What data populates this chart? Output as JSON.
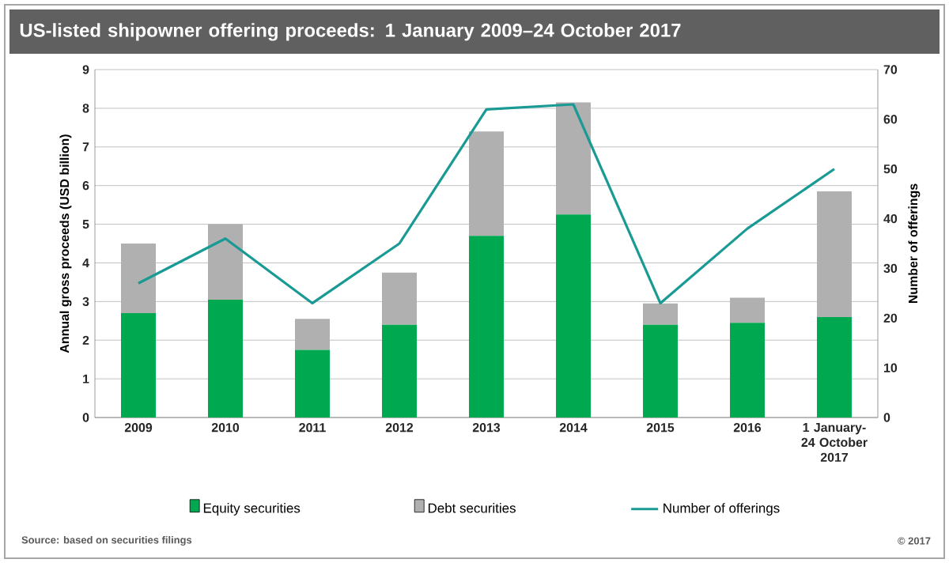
{
  "chart_data": {
    "type": "bar",
    "title": "US-listed shipowner offering proceeds: 1 January 2009–24 October 2017",
    "categories": [
      "2009",
      "2010",
      "2011",
      "2012",
      "2013",
      "2014",
      "2015",
      "2016",
      "1 January- 24 October 2017"
    ],
    "series": [
      {
        "name": "Equity securities",
        "color": "#00a94f",
        "values": [
          2.7,
          3.05,
          1.75,
          2.4,
          4.7,
          5.25,
          2.4,
          2.45,
          2.6
        ]
      },
      {
        "name": "Debt securities",
        "color": "#b0b0b0",
        "values": [
          1.8,
          1.95,
          0.8,
          1.35,
          2.7,
          2.9,
          0.55,
          0.65,
          3.25
        ]
      },
      {
        "name": "Number of offerings",
        "type": "line",
        "axis": "y2",
        "color": "#1a9a94",
        "values": [
          27,
          36,
          23,
          35,
          62,
          63,
          23,
          38,
          50
        ]
      }
    ],
    "stacked": true,
    "ylabel": "Annual gross proceeds (USD billion)",
    "y2label": "Number of offerings",
    "ylim": [
      0,
      9
    ],
    "yticks": [
      0,
      1,
      2,
      3,
      4,
      5,
      6,
      7,
      8,
      9
    ],
    "y2lim": [
      0,
      70
    ],
    "y2ticks": [
      0,
      10,
      20,
      30,
      40,
      50,
      60,
      70
    ],
    "grid": "y",
    "legend": "bottom",
    "annotations": [
      "Source: based on securities filings",
      "© 2017"
    ]
  }
}
